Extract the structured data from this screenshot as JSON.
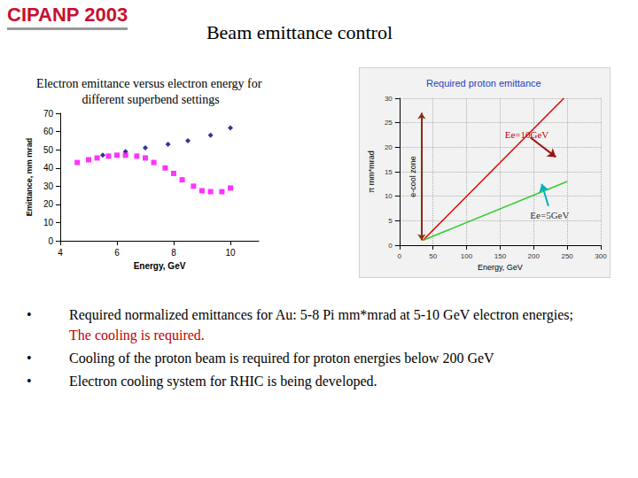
{
  "slide": {
    "logo": "CIPANP 2003",
    "title": "Beam emittance control",
    "bullets": [
      {
        "text": "Required normalized emittances for Au: 5-8 Pi mm*mrad at 5-10 GeV electron energies;",
        "continuation": "The cooling is required."
      },
      {
        "text": "Cooling of the proton beam is required for proton energies below 200 GeV"
      },
      {
        "text": "Electron cooling system for RHIC is being developed."
      }
    ]
  },
  "chart_data": [
    {
      "type": "scatter",
      "title": "Electron emittance versus electron energy for different superbend settings",
      "x_label": "Energy, GeV",
      "y_label": "Emittance, mm mrad",
      "xlim": [
        4,
        11
      ],
      "xticks": [
        4,
        6,
        8,
        10
      ],
      "ylim": [
        0,
        70
      ],
      "yticks": [
        0,
        10,
        20,
        30,
        40,
        50,
        60,
        70
      ],
      "grid": false,
      "series": [
        {
          "color": "#000080",
          "marker": "diamond",
          "x": [
            5.5,
            6.3,
            7.0,
            7.8,
            8.5,
            9.3,
            10.0
          ],
          "values": [
            47,
            49,
            51,
            53,
            55,
            58,
            62
          ]
        },
        {
          "color": "#ff00ff",
          "marker": "square",
          "x": [
            4.6,
            5.0,
            5.3,
            5.7,
            6.0,
            6.3,
            6.7,
            7.0,
            7.3,
            7.7,
            8.0,
            8.3,
            8.7,
            9.0,
            9.3,
            9.7,
            10.0
          ],
          "values": [
            43,
            44.5,
            45.5,
            46.5,
            47,
            47,
            46.5,
            45.5,
            43,
            40,
            37,
            33.5,
            30,
            27.5,
            27,
            27,
            29
          ]
        }
      ]
    },
    {
      "type": "line",
      "title": "Required proton emittance",
      "x_label": "Energy, GeV",
      "y_label": "π mm*mrad",
      "xlim": [
        0,
        300
      ],
      "xticks": [
        0,
        50,
        100,
        150,
        200,
        250,
        300
      ],
      "ylim": [
        0,
        30
      ],
      "yticks": [
        0,
        5,
        10,
        15,
        20,
        25,
        30
      ],
      "grid": true,
      "series": [
        {
          "name": "Ee=10GeV",
          "color": "#e00000",
          "x": [
            35,
            245
          ],
          "values": [
            1,
            30
          ],
          "arrow": {
            "from": [
              195,
              22
            ],
            "to": [
              233,
              18
            ],
            "color": "#a01010"
          }
        },
        {
          "name": "Ee=5GeV",
          "color": "#33cc33",
          "x": [
            35,
            250
          ],
          "values": [
            1,
            13
          ],
          "arrow": {
            "from": [
              222,
              8
            ],
            "to": [
              212,
              12.5
            ],
            "color": "#00b0c0"
          }
        }
      ],
      "ecool_zone": {
        "label": "e-cool zone",
        "x": 33,
        "y": [
          1,
          27
        ],
        "color": "#8b2a10"
      }
    }
  ]
}
